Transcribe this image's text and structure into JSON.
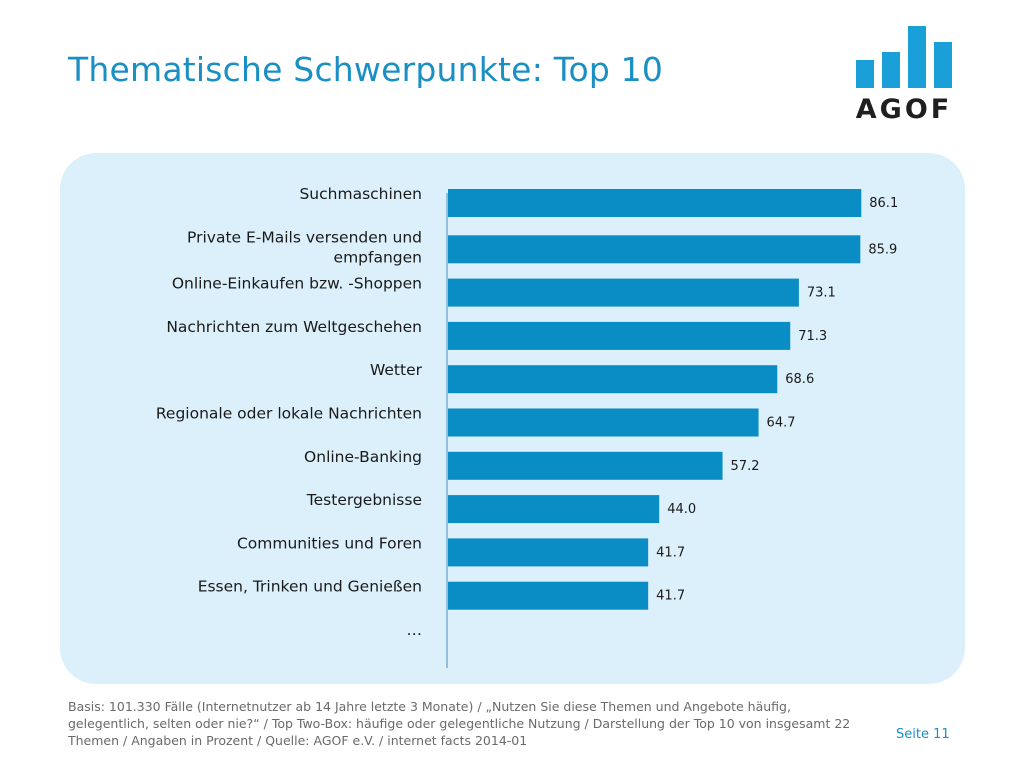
{
  "slide": {
    "title": "Thematische Schwerpunkte: Top 10",
    "logo_text": "AGOF",
    "footnote": "Basis: 101.330 Fälle (Internetnutzer ab 14 Jahre letzte 3 Monate) / „Nutzen Sie diese Themen und Angebote häufig, gelegentlich, selten oder nie?“ / Top Two-Box: häufige oder gelegentliche Nutzung / Darstellung der Top 10 von insgesamt 22 Themen / Angaben in Prozent / Quelle: AGOF e.V. / internet facts 2014-01",
    "page_label": "Seite 11"
  },
  "colors": {
    "title": "#1a8fc4",
    "bar": "#0a8cc4",
    "panel": "#dcf0fb",
    "logo": "#1a9fd8"
  },
  "chart_data": {
    "type": "bar",
    "orientation": "horizontal",
    "categories": [
      "Suchmaschinen",
      "Private E-Mails versenden und empfangen",
      "Online-Einkaufen bzw. -Shoppen",
      "Nachrichten zum Weltgeschehen",
      "Wetter",
      "Regionale oder lokale Nachrichten",
      "Online-Banking",
      "Testergebnisse",
      "Communities und Foren",
      "Essen, Trinken und Genießen",
      "…"
    ],
    "values": [
      86.1,
      85.9,
      73.1,
      71.3,
      68.6,
      64.7,
      57.2,
      44.0,
      41.7,
      41.7,
      null
    ],
    "value_labels": [
      "86.1",
      "85.9",
      "73.1",
      "71.3",
      "68.6",
      "64.7",
      "57.2",
      "44.0",
      "41.7",
      "41.7",
      ""
    ],
    "xlim": [
      0,
      100
    ],
    "grid": false,
    "legend": "none"
  }
}
